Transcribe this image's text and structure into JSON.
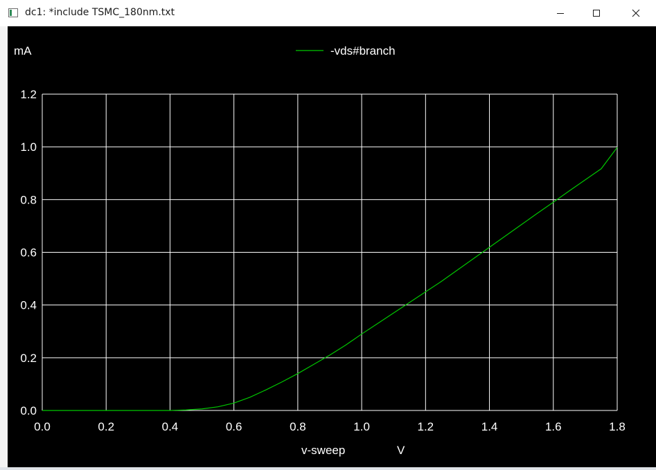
{
  "window": {
    "title": "dc1: *include TSMC_180nm.txt",
    "buttons": [
      "minimize",
      "maximize",
      "close"
    ]
  },
  "colors": {
    "background": "#000000",
    "grid": "#ffffff",
    "trace": "#00c800",
    "text": "#ffffff"
  },
  "chart_data": {
    "type": "line",
    "title": "",
    "ylabel": "mA",
    "xlabel": "v-sweep",
    "xunit": "V",
    "xlim": [
      0.0,
      1.8
    ],
    "ylim": [
      0.0,
      1.2
    ],
    "xticks": [
      "0.0",
      "0.2",
      "0.4",
      "0.6",
      "0.8",
      "1.0",
      "1.2",
      "1.4",
      "1.6",
      "1.8"
    ],
    "yticks": [
      "0.0",
      "0.2",
      "0.4",
      "0.6",
      "0.8",
      "1.0",
      "1.2"
    ],
    "grid": true,
    "legend_position": "top-center",
    "series": [
      {
        "name": "-vds#branch",
        "x": [
          0.0,
          0.1,
          0.2,
          0.3,
          0.4,
          0.45,
          0.5,
          0.55,
          0.6,
          0.65,
          0.7,
          0.75,
          0.8,
          0.85,
          0.9,
          0.95,
          1.0,
          1.05,
          1.1,
          1.15,
          1.2,
          1.25,
          1.3,
          1.35,
          1.4,
          1.45,
          1.5,
          1.55,
          1.6,
          1.65,
          1.7,
          1.75,
          1.8
        ],
        "y": [
          0.0,
          0.0,
          0.0,
          0.0,
          0.0,
          0.002,
          0.006,
          0.014,
          0.028,
          0.05,
          0.078,
          0.108,
          0.14,
          0.175,
          0.21,
          0.248,
          0.29,
          0.33,
          0.37,
          0.41,
          0.45,
          0.49,
          0.533,
          0.576,
          0.619,
          0.662,
          0.705,
          0.748,
          0.79,
          0.833,
          0.875,
          0.917,
          0.998
        ]
      }
    ]
  }
}
